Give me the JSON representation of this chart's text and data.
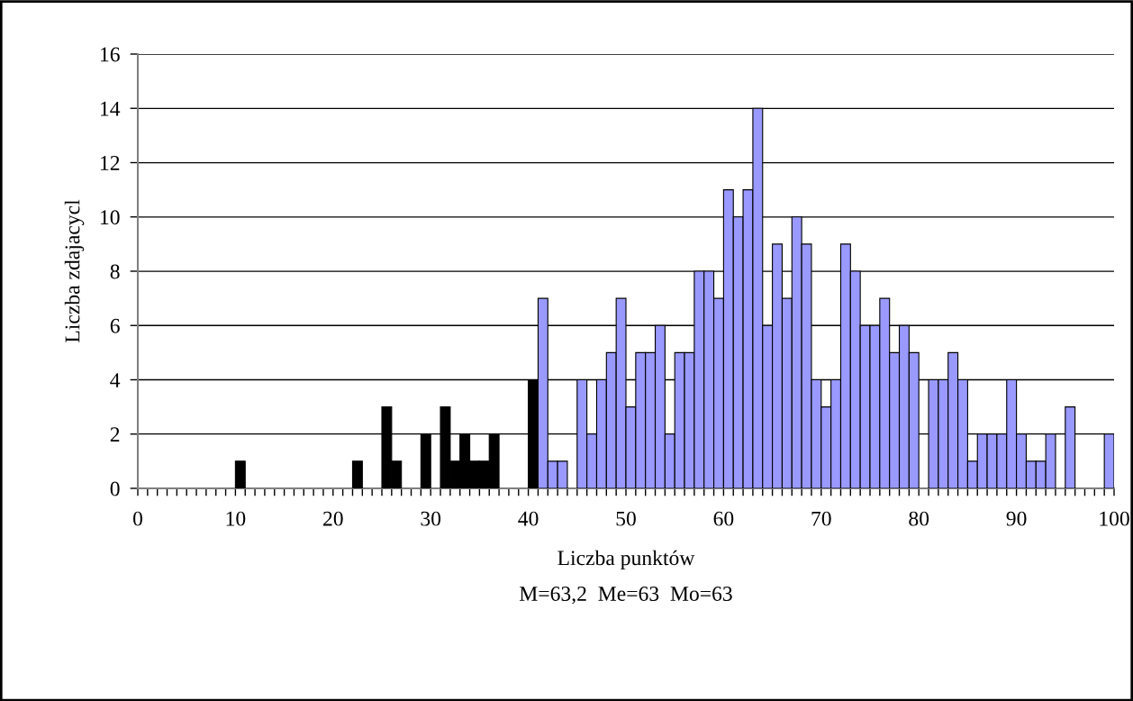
{
  "chart_data": {
    "type": "histogram",
    "xlabel": "Liczba punktów",
    "ylabel": "Liczba zdajacycl",
    "annotations": [
      "M=63,2  Me=63  Mo=63"
    ],
    "bins": [
      0,
      1,
      2,
      3,
      4,
      5,
      6,
      7,
      8,
      9,
      10,
      11,
      12,
      13,
      14,
      15,
      16,
      17,
      18,
      19,
      20,
      21,
      22,
      23,
      24,
      25,
      26,
      27,
      28,
      29,
      30,
      31,
      32,
      33,
      34,
      35,
      36,
      37,
      38,
      39,
      40,
      41,
      42,
      43,
      44,
      45,
      46,
      47,
      48,
      49,
      50,
      51,
      52,
      53,
      54,
      55,
      56,
      57,
      58,
      59,
      60,
      61,
      62,
      63,
      64,
      65,
      66,
      67,
      68,
      69,
      70,
      71,
      72,
      73,
      74,
      75,
      76,
      77,
      78,
      79,
      80,
      81,
      82,
      83,
      84,
      85,
      86,
      87,
      88,
      89,
      90,
      91,
      92,
      93,
      94,
      95,
      96,
      97,
      98,
      99,
      100
    ],
    "values": [
      0,
      0,
      0,
      0,
      0,
      0,
      0,
      0,
      0,
      0,
      1,
      0,
      0,
      0,
      0,
      0,
      0,
      0,
      0,
      0,
      0,
      0,
      1,
      0,
      0,
      3,
      1,
      0,
      0,
      2,
      0,
      3,
      1,
      2,
      1,
      1,
      2,
      0,
      0,
      0,
      4,
      7,
      1,
      1,
      0,
      4,
      2,
      4,
      5,
      7,
      3,
      5,
      5,
      6,
      2,
      5,
      5,
      8,
      8,
      7,
      11,
      10,
      11,
      14,
      6,
      9,
      7,
      10,
      9,
      4,
      3,
      4,
      9,
      8,
      6,
      6,
      7,
      5,
      6,
      5,
      0,
      4,
      4,
      5,
      4,
      1,
      2,
      2,
      2,
      4,
      2,
      1,
      1,
      2,
      0,
      3,
      0,
      0,
      0,
      2
    ],
    "colors": [
      "#000000",
      "#000000",
      "#000000",
      "#000000",
      "#000000",
      "#000000",
      "#000000",
      "#000000",
      "#000000",
      "#000000",
      "#000000",
      "#000000",
      "#000000",
      "#000000",
      "#000000",
      "#000000",
      "#000000",
      "#000000",
      "#000000",
      "#000000",
      "#000000",
      "#000000",
      "#000000",
      "#000000",
      "#000000",
      "#000000",
      "#000000",
      "#000000",
      "#000000",
      "#000000",
      "#000000",
      "#000000",
      "#000000",
      "#000000",
      "#000000",
      "#000000",
      "#000000",
      "#000000",
      "#000000",
      "#000000",
      "#000000",
      "#9999ff",
      "#9999ff",
      "#9999ff",
      "#9999ff",
      "#9999ff",
      "#9999ff",
      "#9999ff",
      "#9999ff",
      "#9999ff",
      "#9999ff",
      "#9999ff",
      "#9999ff",
      "#9999ff",
      "#9999ff",
      "#9999ff",
      "#9999ff",
      "#9999ff",
      "#9999ff",
      "#9999ff",
      "#9999ff",
      "#9999ff",
      "#9999ff",
      "#9999ff",
      "#9999ff",
      "#9999ff",
      "#9999ff",
      "#9999ff",
      "#9999ff",
      "#9999ff",
      "#9999ff",
      "#9999ff",
      "#9999ff",
      "#9999ff",
      "#9999ff",
      "#9999ff",
      "#9999ff",
      "#9999ff",
      "#9999ff",
      "#9999ff",
      "#9999ff",
      "#9999ff",
      "#9999ff",
      "#9999ff",
      "#9999ff",
      "#9999ff",
      "#9999ff",
      "#9999ff",
      "#9999ff",
      "#9999ff",
      "#9999ff",
      "#9999ff",
      "#9999ff",
      "#9999ff",
      "#9999ff",
      "#9999ff",
      "#9999ff",
      "#9999ff",
      "#9999ff",
      "#9999ff"
    ],
    "xlim": [
      0,
      100
    ],
    "xticks": [
      0,
      {
        "value": 1,
        "label": null
      },
      {
        "value": 2,
        "label": null
      },
      {
        "value": 3,
        "label": null
      },
      {
        "value": 4,
        "label": null
      },
      {
        "value": 5,
        "label": null
      },
      {
        "value": 6,
        "label": null
      },
      {
        "value": 7,
        "label": null
      },
      {
        "value": 8,
        "label": null
      },
      {
        "value": 9,
        "label": null
      },
      10,
      {
        "value": 11,
        "label": null
      },
      {
        "value": 12,
        "label": null
      },
      {
        "value": 13,
        "label": null
      },
      {
        "value": 14,
        "label": null
      },
      {
        "value": 15,
        "label": null
      },
      {
        "value": 16,
        "label": null
      },
      {
        "value": 17,
        "label": null
      },
      {
        "value": 18,
        "label": null
      },
      {
        "value": 19,
        "label": null
      },
      20,
      {
        "value": 21,
        "label": null
      },
      {
        "value": 22,
        "label": null
      },
      {
        "value": 23,
        "label": null
      },
      {
        "value": 24,
        "label": null
      },
      {
        "value": 25,
        "label": null
      },
      {
        "value": 26,
        "label": null
      },
      {
        "value": 27,
        "label": null
      },
      {
        "value": 28,
        "label": null
      },
      {
        "value": 29,
        "label": null
      },
      30,
      {
        "value": 31,
        "label": null
      },
      {
        "value": 32,
        "label": null
      },
      {
        "value": 33,
        "label": null
      },
      {
        "value": 34,
        "label": null
      },
      {
        "value": 35,
        "label": null
      },
      {
        "value": 36,
        "label": null
      },
      {
        "value": 37,
        "label": null
      },
      {
        "value": 38,
        "label": null
      },
      {
        "value": 39,
        "label": null
      },
      40,
      {
        "value": 41,
        "label": null
      },
      {
        "value": 42,
        "label": null
      },
      {
        "value": 43,
        "label": null
      },
      {
        "value": 44,
        "label": null
      },
      {
        "value": 45,
        "label": null
      },
      {
        "value": 46,
        "label": null
      },
      {
        "value": 47,
        "label": null
      },
      {
        "value": 48,
        "label": null
      },
      {
        "value": 49,
        "label": null
      },
      50,
      {
        "value": 51,
        "label": null
      },
      {
        "value": 52,
        "label": null
      },
      {
        "value": 53,
        "label": null
      },
      {
        "value": 54,
        "label": null
      },
      {
        "value": 55,
        "label": null
      },
      {
        "value": 56,
        "label": null
      },
      {
        "value": 57,
        "label": null
      },
      {
        "value": 58,
        "label": null
      },
      {
        "value": 59,
        "label": null
      },
      60,
      {
        "value": 61,
        "label": null
      },
      {
        "value": 62,
        "label": null
      },
      {
        "value": 63,
        "label": null
      },
      {
        "value": 64,
        "label": null
      },
      {
        "value": 65,
        "label": null
      },
      {
        "value": 66,
        "label": null
      },
      {
        "value": 67,
        "label": null
      },
      {
        "value": 68,
        "label": null
      },
      {
        "value": 69,
        "label": null
      },
      70,
      {
        "value": 71,
        "label": null
      },
      {
        "value": 72,
        "label": null
      },
      {
        "value": 73,
        "label": null
      },
      {
        "value": 74,
        "label": null
      },
      {
        "value": 75,
        "label": null
      },
      {
        "value": 76,
        "label": null
      },
      {
        "value": 77,
        "label": null
      },
      {
        "value": 78,
        "label": null
      },
      {
        "value": 79,
        "label": null
      },
      80,
      {
        "value": 81,
        "label": null
      },
      {
        "value": 82,
        "label": null
      },
      {
        "value": 83,
        "label": null
      },
      {
        "value": 84,
        "label": null
      },
      {
        "value": 85,
        "label": null
      },
      {
        "value": 86,
        "label": null
      },
      {
        "value": 87,
        "label": null
      },
      {
        "value": 88,
        "label": null
      },
      {
        "value": 89,
        "label": null
      },
      90,
      {
        "value": 91,
        "label": null
      },
      {
        "value": 92,
        "label": null
      },
      {
        "value": 93,
        "label": null
      },
      {
        "value": 94,
        "label": null
      },
      {
        "value": 95,
        "label": null
      },
      {
        "value": 96,
        "label": null
      },
      {
        "value": 97,
        "label": null
      },
      {
        "value": 98,
        "label": null
      },
      {
        "value": 99,
        "label": null
      },
      100
    ],
    "ylim": [
      0,
      16
    ],
    "yticks": [
      0,
      2,
      4,
      6,
      8,
      10,
      12,
      14,
      16
    ],
    "grid": "y",
    "legend": false
  }
}
